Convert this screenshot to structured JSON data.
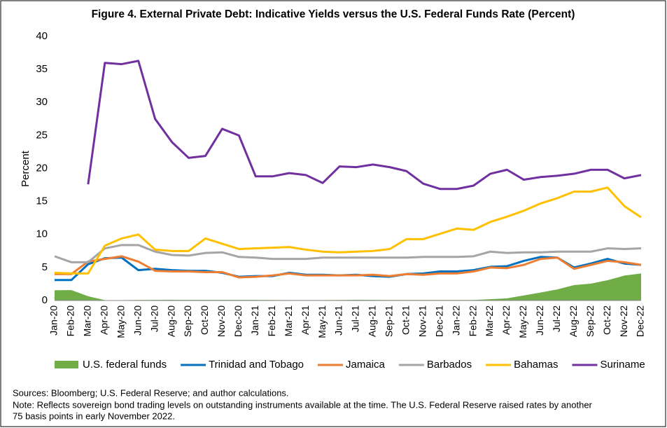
{
  "chart_data": {
    "type": "line",
    "title": "Figure 4. External Private Debt: Indicative Yields versus the U.S. Federal Funds Rate (Percent)",
    "y_label": "Percent",
    "categories": [
      "Jan-20",
      "Feb-20",
      "Mar-20",
      "Apr-20",
      "May-20",
      "Jun-20",
      "Jul-20",
      "Aug-20",
      "Sep-20",
      "Oct-20",
      "Nov-20",
      "Dec-20",
      "Jan-21",
      "Feb-21",
      "Mar-21",
      "Apr-21",
      "May-21",
      "Jun-21",
      "Jul-21",
      "Aug-21",
      "Sep-21",
      "Oct-21",
      "Nov-21",
      "Dec-21",
      "Jan-22",
      "Feb-22",
      "Mar-22",
      "Apr-22",
      "May-22",
      "Jun-22",
      "Jul-22",
      "Aug-22",
      "Sep-22",
      "Oct-22",
      "Nov-22",
      "Dec-22"
    ],
    "series": [
      {
        "name": "U.S. federal funds",
        "type": "area",
        "color": "#70ad47",
        "values": [
          1.55,
          1.58,
          0.65,
          0.05,
          0.05,
          0.08,
          0.09,
          0.1,
          0.09,
          0.09,
          0.09,
          0.09,
          0.09,
          0.08,
          0.07,
          0.07,
          0.06,
          0.08,
          0.1,
          0.09,
          0.08,
          0.08,
          0.08,
          0.08,
          0.08,
          0.08,
          0.2,
          0.33,
          0.77,
          1.21,
          1.68,
          2.33,
          2.56,
          3.08,
          3.78,
          4.1
        ]
      },
      {
        "name": "Trinidad and Tobago",
        "type": "line",
        "color": "#0070c0",
        "values": [
          3.1,
          3.1,
          5.5,
          6.4,
          6.5,
          4.6,
          4.8,
          4.6,
          4.5,
          4.5,
          4.2,
          3.6,
          3.7,
          3.7,
          4.2,
          3.9,
          3.9,
          3.8,
          3.9,
          3.7,
          3.6,
          4.0,
          4.1,
          4.4,
          4.4,
          4.6,
          5.1,
          5.2,
          6.0,
          6.6,
          6.5,
          5.0,
          5.6,
          6.3,
          5.6,
          5.4
        ]
      },
      {
        "name": "Jamaica",
        "type": "line",
        "color": "#ed7d31",
        "values": [
          4.0,
          4.0,
          5.9,
          6.3,
          6.7,
          5.9,
          4.5,
          4.4,
          4.4,
          4.3,
          4.3,
          3.5,
          3.6,
          3.8,
          4.1,
          3.8,
          3.8,
          3.8,
          3.8,
          3.9,
          3.7,
          4.0,
          3.9,
          4.1,
          4.1,
          4.4,
          5.0,
          4.9,
          5.4,
          6.3,
          6.5,
          4.8,
          5.4,
          6.0,
          5.8,
          5.4
        ]
      },
      {
        "name": "Barbados",
        "type": "line",
        "color": "#a5a5a5",
        "values": [
          6.7,
          5.8,
          5.8,
          7.9,
          8.4,
          8.4,
          7.4,
          6.9,
          6.8,
          7.2,
          7.3,
          6.6,
          6.5,
          6.3,
          6.3,
          6.3,
          6.5,
          6.5,
          6.5,
          6.5,
          6.5,
          6.5,
          6.6,
          6.6,
          6.6,
          6.7,
          7.4,
          7.2,
          7.3,
          7.3,
          7.4,
          7.4,
          7.4,
          7.9,
          7.8,
          7.9
        ]
      },
      {
        "name": "Bahamas",
        "type": "line",
        "color": "#ffc000",
        "values": [
          4.2,
          4.1,
          4.1,
          8.3,
          9.4,
          10.0,
          7.7,
          7.5,
          7.5,
          9.4,
          8.6,
          7.8,
          7.9,
          8.0,
          8.1,
          7.7,
          7.4,
          7.3,
          7.4,
          7.5,
          7.8,
          9.3,
          9.3,
          10.1,
          10.9,
          10.7,
          11.9,
          12.7,
          13.6,
          14.7,
          15.5,
          16.5,
          16.5,
          17.1,
          14.3,
          12.6
        ]
      },
      {
        "name": "Suriname",
        "type": "line",
        "color": "#7030a0",
        "values": [
          null,
          null,
          17.6,
          36.0,
          35.8,
          36.3,
          27.5,
          24.0,
          21.6,
          21.9,
          26.0,
          25.0,
          18.8,
          18.8,
          19.3,
          19.0,
          17.8,
          20.3,
          20.2,
          20.6,
          20.2,
          19.6,
          17.7,
          16.9,
          16.9,
          17.4,
          19.2,
          19.8,
          18.3,
          18.7,
          18.9,
          19.2,
          19.8,
          19.8,
          18.5,
          19.0
        ]
      }
    ],
    "ylim": [
      0,
      40
    ],
    "yticks": [
      0,
      5,
      10,
      15,
      20,
      25,
      30,
      35,
      40
    ],
    "grid": false,
    "legend": "bottom",
    "sources": "Sources: Bloomberg; U.S. Federal Reserve; and author calculations.",
    "notes": [
      "Note: Reflects sovereign bond trading levels on outstanding instruments available at the time. The U.S. Federal Reserve raised rates by another",
      "75 basis points in early November 2022."
    ]
  }
}
